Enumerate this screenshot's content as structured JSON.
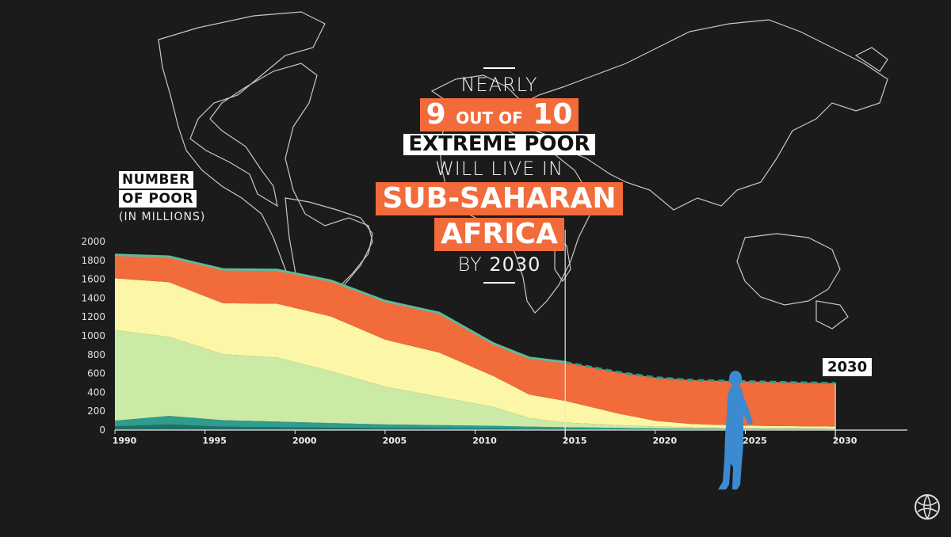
{
  "headline": {
    "line1": "NEARLY",
    "line2a": "9",
    "line2b": "OUT OF",
    "line2c": "10",
    "line3": "EXTREME POOR",
    "line4": "WILL LIVE IN",
    "line5": "SUB-SAHARAN",
    "line6": "AFRICA",
    "line7a": "BY",
    "line7b": "2030"
  },
  "y_title_line1": "NUMBER",
  "y_title_line2": "OF POOR",
  "y_title_unit": "(IN MILLIONS)",
  "badge_year": "2030",
  "colors": {
    "background": "#1b1b1b",
    "orange": "#f26b3a",
    "yellow": "#fcf7a6",
    "light_green": "#cbeaa5",
    "mid_green": "#7fc8a0",
    "teal": "#2f9c8c",
    "dark_teal": "#1f6f6a",
    "figure": "#3c8ad0"
  },
  "icons": [
    "world-map",
    "person-silhouette",
    "world-bank-globe-icon"
  ],
  "chart_data": {
    "type": "area",
    "stacked": true,
    "x": [
      1990,
      1993,
      1996,
      1999,
      2002,
      2005,
      2008,
      2011,
      2013,
      2015,
      2018,
      2020,
      2022,
      2025,
      2030
    ],
    "series": [
      {
        "name": "",
        "color": "#1f6f6a",
        "values": [
          40,
          60,
          35,
          30,
          25,
          20,
          18,
          15,
          12,
          10,
          8,
          6,
          5,
          4,
          3
        ]
      },
      {
        "name": "",
        "color": "#2f9c8c",
        "values": [
          60,
          90,
          70,
          60,
          50,
          40,
          35,
          30,
          25,
          20,
          15,
          12,
          10,
          8,
          6
        ]
      },
      {
        "name": "",
        "color": "#cbeaa5",
        "values": [
          960,
          840,
          700,
          680,
          550,
          400,
          300,
          200,
          90,
          50,
          30,
          20,
          15,
          10,
          8
        ]
      },
      {
        "name": "",
        "color": "#fcf7a6",
        "values": [
          550,
          580,
          540,
          570,
          580,
          500,
          470,
          330,
          250,
          230,
          120,
          60,
          35,
          25,
          20
        ]
      },
      {
        "name": "",
        "color": "#f26b3a",
        "values": [
          250,
          270,
          360,
          360,
          380,
          410,
          420,
          345,
          390,
          410,
          440,
          460,
          465,
          470,
          460
        ]
      }
    ],
    "projected_from": 2015,
    "xticks": [
      1990,
      1995,
      2000,
      2005,
      2010,
      2015,
      2020,
      2025,
      2030
    ],
    "yticks": [
      0,
      200,
      400,
      600,
      800,
      1000,
      1200,
      1400,
      1600,
      1800,
      2000
    ],
    "ylim": [
      0,
      2000
    ],
    "xlim": [
      1990,
      2034
    ],
    "grid": false
  }
}
